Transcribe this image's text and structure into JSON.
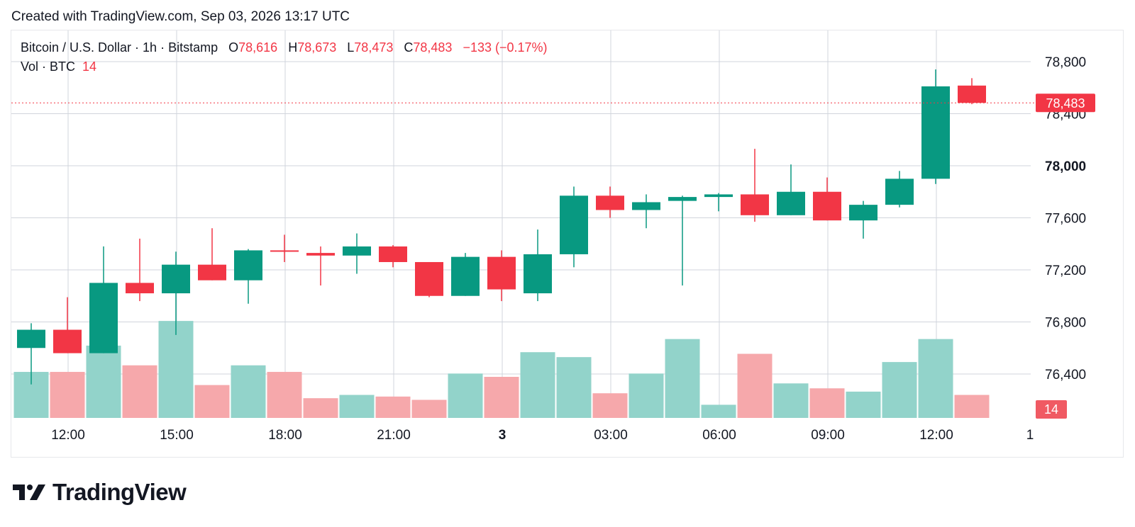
{
  "caption": "Created with TradingView.com, Sep 03, 2026 13:17 UTC",
  "legend": {
    "symbol": "Bitcoin / U.S. Dollar · 1h · Bitstamp",
    "o_label": "O",
    "o_value": "78,616",
    "h_label": "H",
    "h_value": "78,673",
    "l_label": "L",
    "l_value": "78,473",
    "c_label": "C",
    "c_value": "78,483",
    "change": "−133 (−0.17%)"
  },
  "volume_legend": {
    "label": "Vol · BTC",
    "value": "14"
  },
  "brand": {
    "name": "TradingView"
  },
  "colors": {
    "up": "#089981",
    "down": "#f23645",
    "vol_up": "#92d3ca",
    "vol_down": "#f6a8ab"
  },
  "chart_data": {
    "type": "candlestick",
    "interval": "1h",
    "y_axis": {
      "ticks": [
        76400,
        76800,
        77200,
        77600,
        78000,
        78400,
        78800
      ],
      "ylim": [
        76000,
        79000
      ],
      "bold_tick": 78000
    },
    "x_axis": {
      "ticks": [
        "12:00",
        "15:00",
        "18:00",
        "21:00",
        "3",
        "03:00",
        "06:00",
        "09:00",
        "12:00",
        "1"
      ],
      "bold_ticks": [
        "3"
      ]
    },
    "last_price_label": "78,483",
    "last_volume_label": "14",
    "candles": [
      {
        "time": "11:00",
        "o": 76600,
        "h": 76790,
        "l": 76320,
        "c": 76740,
        "v": 28
      },
      {
        "time": "12:00",
        "o": 76740,
        "h": 76990,
        "l": 76560,
        "c": 76560,
        "v": 28
      },
      {
        "time": "13:00",
        "o": 76560,
        "h": 77380,
        "l": 76560,
        "c": 77100,
        "v": 44
      },
      {
        "time": "14:00",
        "o": 77100,
        "h": 77440,
        "l": 76960,
        "c": 77020,
        "v": 32
      },
      {
        "time": "15:00",
        "o": 77020,
        "h": 77340,
        "l": 76700,
        "c": 77240,
        "v": 59
      },
      {
        "time": "16:00",
        "o": 77240,
        "h": 77520,
        "l": 77120,
        "c": 77120,
        "v": 20
      },
      {
        "time": "17:00",
        "o": 77120,
        "h": 77360,
        "l": 76940,
        "c": 77350,
        "v": 32
      },
      {
        "time": "18:00",
        "o": 77350,
        "h": 77470,
        "l": 77260,
        "c": 77340,
        "v": 28
      },
      {
        "time": "19:00",
        "o": 77330,
        "h": 77380,
        "l": 77080,
        "c": 77310,
        "v": 12
      },
      {
        "time": "20:00",
        "o": 77310,
        "h": 77480,
        "l": 77170,
        "c": 77380,
        "v": 14
      },
      {
        "time": "21:00",
        "o": 77380,
        "h": 77390,
        "l": 77220,
        "c": 77260,
        "v": 13
      },
      {
        "time": "22:00",
        "o": 77260,
        "h": 77260,
        "l": 76990,
        "c": 77000,
        "v": 11
      },
      {
        "time": "23:00",
        "o": 77000,
        "h": 77330,
        "l": 77000,
        "c": 77300,
        "v": 27
      },
      {
        "time": "00:00",
        "o": 77300,
        "h": 77350,
        "l": 76960,
        "c": 77050,
        "v": 25
      },
      {
        "time": "01:00",
        "o": 77020,
        "h": 77510,
        "l": 76960,
        "c": 77320,
        "v": 40
      },
      {
        "time": "02:00",
        "o": 77320,
        "h": 77840,
        "l": 77220,
        "c": 77770,
        "v": 37
      },
      {
        "time": "03:00",
        "o": 77770,
        "h": 77840,
        "l": 77600,
        "c": 77660,
        "v": 15
      },
      {
        "time": "04:00",
        "o": 77660,
        "h": 77780,
        "l": 77520,
        "c": 77720,
        "v": 27
      },
      {
        "time": "05:00",
        "o": 77730,
        "h": 77770,
        "l": 77080,
        "c": 77760,
        "v": 48
      },
      {
        "time": "06:00",
        "o": 77760,
        "h": 77790,
        "l": 77650,
        "c": 77780,
        "v": 8
      },
      {
        "time": "07:00",
        "o": 77780,
        "h": 78130,
        "l": 77570,
        "c": 77620,
        "v": 39
      },
      {
        "time": "08:00",
        "o": 77620,
        "h": 78010,
        "l": 77620,
        "c": 77800,
        "v": 21
      },
      {
        "time": "09:00",
        "o": 77800,
        "h": 77910,
        "l": 77580,
        "c": 77580,
        "v": 18
      },
      {
        "time": "10:00",
        "o": 77580,
        "h": 77730,
        "l": 77440,
        "c": 77700,
        "v": 16
      },
      {
        "time": "11:00",
        "o": 77700,
        "h": 77960,
        "l": 77680,
        "c": 77900,
        "v": 34
      },
      {
        "time": "12:00",
        "o": 77900,
        "h": 78740,
        "l": 77860,
        "c": 78610,
        "v": 48
      },
      {
        "time": "13:00",
        "o": 78616,
        "h": 78673,
        "l": 78473,
        "c": 78483,
        "v": 14
      }
    ]
  }
}
